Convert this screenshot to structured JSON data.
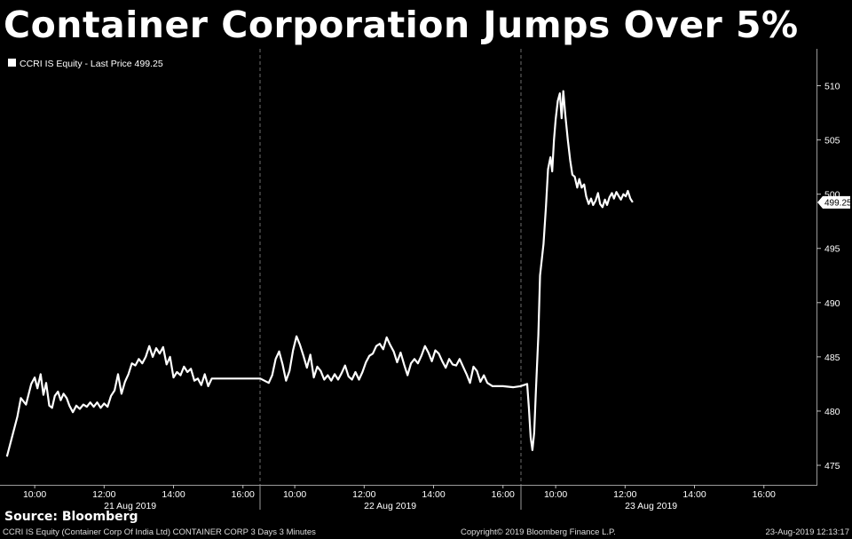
{
  "headline": "Container Corporation Jumps Over 5%",
  "source": "Source: Bloomberg",
  "footer": {
    "left": "CCRI IS Equity (Container Corp Of India Ltd) CONTAINER CORP 3 Days 3 Minutes",
    "center": "Copyright© 2019 Bloomberg Finance L.P.",
    "right": "23-Aug-2019 12:13:17"
  },
  "colors": {
    "background": "#000000",
    "line": "#ffffff",
    "grid": "#6e6e6e",
    "text": "#ffffff"
  },
  "chart_data": {
    "type": "line",
    "title": "",
    "xlabel": "",
    "ylabel": "",
    "legend": {
      "entry": "CCRI IS Equity - Last Price 499.25",
      "placement": "top-left"
    },
    "last_price_label": "499.25",
    "ylim": [
      473.2,
      513.4
    ],
    "yticks": [
      475,
      480,
      485,
      490,
      495,
      500,
      505,
      510
    ],
    "grid": "vertical dashed day separators",
    "days": [
      {
        "label": "21 Aug 2019",
        "ticks": [
          "10:00",
          "12:00",
          "14:00",
          "16:00"
        ]
      },
      {
        "label": "22 Aug 2019",
        "ticks": [
          "10:00",
          "12:00",
          "14:00",
          "16:00"
        ]
      },
      {
        "label": "23 Aug 2019",
        "ticks": [
          "10:00",
          "12:00",
          "14:00",
          "16:00"
        ]
      }
    ],
    "x_session_hours": [
      9.0,
      16.5
    ],
    "series": [
      {
        "values": [
          [
            0,
            9.2,
            475.8
          ],
          [
            0,
            9.33,
            477.4
          ],
          [
            0,
            9.5,
            479.5
          ],
          [
            0,
            9.6,
            481.2
          ],
          [
            0,
            9.75,
            480.6
          ],
          [
            0,
            9.9,
            482.5
          ],
          [
            0,
            10.0,
            483.1
          ],
          [
            0,
            10.08,
            482.1
          ],
          [
            0,
            10.17,
            483.4
          ],
          [
            0,
            10.25,
            481.5
          ],
          [
            0,
            10.33,
            482.6
          ],
          [
            0,
            10.42,
            480.5
          ],
          [
            0,
            10.5,
            480.3
          ],
          [
            0,
            10.58,
            481.4
          ],
          [
            0,
            10.67,
            481.8
          ],
          [
            0,
            10.75,
            481.0
          ],
          [
            0,
            10.83,
            481.6
          ],
          [
            0,
            10.92,
            481.2
          ],
          [
            0,
            11.0,
            480.5
          ],
          [
            0,
            11.1,
            479.9
          ],
          [
            0,
            11.2,
            480.5
          ],
          [
            0,
            11.3,
            480.2
          ],
          [
            0,
            11.4,
            480.6
          ],
          [
            0,
            11.5,
            480.4
          ],
          [
            0,
            11.6,
            480.8
          ],
          [
            0,
            11.7,
            480.4
          ],
          [
            0,
            11.8,
            480.8
          ],
          [
            0,
            11.9,
            480.3
          ],
          [
            0,
            12.0,
            480.7
          ],
          [
            0,
            12.1,
            480.4
          ],
          [
            0,
            12.2,
            481.4
          ],
          [
            0,
            12.3,
            481.9
          ],
          [
            0,
            12.4,
            483.4
          ],
          [
            0,
            12.5,
            481.6
          ],
          [
            0,
            12.6,
            482.7
          ],
          [
            0,
            12.7,
            483.4
          ],
          [
            0,
            12.8,
            484.4
          ],
          [
            0,
            12.9,
            484.2
          ],
          [
            0,
            13.0,
            484.8
          ],
          [
            0,
            13.1,
            484.4
          ],
          [
            0,
            13.2,
            485.0
          ],
          [
            0,
            13.3,
            486.0
          ],
          [
            0,
            13.4,
            485.0
          ],
          [
            0,
            13.5,
            485.8
          ],
          [
            0,
            13.6,
            485.3
          ],
          [
            0,
            13.7,
            485.9
          ],
          [
            0,
            13.8,
            484.3
          ],
          [
            0,
            13.9,
            485.0
          ],
          [
            0,
            14.0,
            483.1
          ],
          [
            0,
            14.1,
            483.6
          ],
          [
            0,
            14.2,
            483.3
          ],
          [
            0,
            14.3,
            484.1
          ],
          [
            0,
            14.4,
            483.6
          ],
          [
            0,
            14.5,
            483.9
          ],
          [
            0,
            14.6,
            482.8
          ],
          [
            0,
            14.7,
            483.0
          ],
          [
            0,
            14.8,
            482.4
          ],
          [
            0,
            14.9,
            483.4
          ],
          [
            0,
            15.0,
            482.3
          ],
          [
            0,
            15.1,
            483.0
          ],
          [
            0,
            15.3,
            483.0
          ],
          [
            0,
            15.6,
            483.0
          ],
          [
            0,
            16.0,
            483.0
          ],
          [
            0,
            16.3,
            483.0
          ],
          [
            0,
            16.5,
            483.0
          ],
          [
            1,
            9.25,
            482.6
          ],
          [
            1,
            9.35,
            483.3
          ],
          [
            1,
            9.45,
            484.8
          ],
          [
            1,
            9.55,
            485.5
          ],
          [
            1,
            9.65,
            484.3
          ],
          [
            1,
            9.75,
            482.8
          ],
          [
            1,
            9.85,
            483.7
          ],
          [
            1,
            9.95,
            485.6
          ],
          [
            1,
            10.05,
            486.9
          ],
          [
            1,
            10.15,
            486.1
          ],
          [
            1,
            10.25,
            485.1
          ],
          [
            1,
            10.35,
            484.0
          ],
          [
            1,
            10.45,
            485.2
          ],
          [
            1,
            10.55,
            483.1
          ],
          [
            1,
            10.65,
            484.1
          ],
          [
            1,
            10.75,
            483.7
          ],
          [
            1,
            10.85,
            482.9
          ],
          [
            1,
            10.95,
            483.3
          ],
          [
            1,
            11.05,
            482.8
          ],
          [
            1,
            11.15,
            483.4
          ],
          [
            1,
            11.25,
            482.9
          ],
          [
            1,
            11.35,
            483.5
          ],
          [
            1,
            11.45,
            484.2
          ],
          [
            1,
            11.55,
            483.2
          ],
          [
            1,
            11.65,
            482.9
          ],
          [
            1,
            11.75,
            483.6
          ],
          [
            1,
            11.85,
            482.9
          ],
          [
            1,
            11.95,
            483.6
          ],
          [
            1,
            12.05,
            484.5
          ],
          [
            1,
            12.15,
            485.1
          ],
          [
            1,
            12.25,
            485.3
          ],
          [
            1,
            12.35,
            486.0
          ],
          [
            1,
            12.45,
            486.2
          ],
          [
            1,
            12.55,
            485.7
          ],
          [
            1,
            12.65,
            486.8
          ],
          [
            1,
            12.75,
            486.1
          ],
          [
            1,
            12.85,
            485.5
          ],
          [
            1,
            12.95,
            484.5
          ],
          [
            1,
            13.05,
            485.4
          ],
          [
            1,
            13.15,
            484.3
          ],
          [
            1,
            13.25,
            483.3
          ],
          [
            1,
            13.35,
            484.4
          ],
          [
            1,
            13.45,
            484.8
          ],
          [
            1,
            13.55,
            484.4
          ],
          [
            1,
            13.65,
            485.1
          ],
          [
            1,
            13.75,
            486.0
          ],
          [
            1,
            13.85,
            485.4
          ],
          [
            1,
            13.95,
            484.6
          ],
          [
            1,
            14.05,
            485.6
          ],
          [
            1,
            14.15,
            485.3
          ],
          [
            1,
            14.25,
            484.6
          ],
          [
            1,
            14.35,
            484.0
          ],
          [
            1,
            14.45,
            484.8
          ],
          [
            1,
            14.55,
            484.3
          ],
          [
            1,
            14.65,
            484.2
          ],
          [
            1,
            14.75,
            484.8
          ],
          [
            1,
            14.85,
            484.1
          ],
          [
            1,
            14.95,
            483.4
          ],
          [
            1,
            15.05,
            482.6
          ],
          [
            1,
            15.15,
            484.1
          ],
          [
            1,
            15.25,
            483.7
          ],
          [
            1,
            15.35,
            482.7
          ],
          [
            1,
            15.45,
            483.3
          ],
          [
            1,
            15.55,
            482.6
          ],
          [
            1,
            15.7,
            482.3
          ],
          [
            1,
            16.0,
            482.3
          ],
          [
            1,
            16.3,
            482.2
          ],
          [
            1,
            16.5,
            482.3
          ],
          [
            2,
            9.18,
            482.5
          ],
          [
            2,
            9.23,
            480.2
          ],
          [
            2,
            9.28,
            477.6
          ],
          [
            2,
            9.33,
            476.4
          ],
          [
            2,
            9.38,
            478.0
          ],
          [
            2,
            9.43,
            481.8
          ],
          [
            2,
            9.5,
            487.0
          ],
          [
            2,
            9.55,
            492.5
          ],
          [
            2,
            9.65,
            495.4
          ],
          [
            2,
            9.72,
            498.9
          ],
          [
            2,
            9.78,
            502.3
          ],
          [
            2,
            9.85,
            503.4
          ],
          [
            2,
            9.9,
            502.1
          ],
          [
            2,
            9.95,
            505.0
          ],
          [
            2,
            10.0,
            506.9
          ],
          [
            2,
            10.06,
            508.6
          ],
          [
            2,
            10.12,
            509.3
          ],
          [
            2,
            10.17,
            507.0
          ],
          [
            2,
            10.22,
            509.5
          ],
          [
            2,
            10.28,
            507.2
          ],
          [
            2,
            10.35,
            505.0
          ],
          [
            2,
            10.42,
            503.1
          ],
          [
            2,
            10.48,
            501.8
          ],
          [
            2,
            10.55,
            501.6
          ],
          [
            2,
            10.62,
            500.6
          ],
          [
            2,
            10.68,
            501.4
          ],
          [
            2,
            10.75,
            500.6
          ],
          [
            2,
            10.82,
            500.9
          ],
          [
            2,
            10.88,
            499.8
          ],
          [
            2,
            10.95,
            499.1
          ],
          [
            2,
            11.02,
            499.6
          ],
          [
            2,
            11.08,
            499.0
          ],
          [
            2,
            11.15,
            499.4
          ],
          [
            2,
            11.22,
            500.1
          ],
          [
            2,
            11.28,
            499.1
          ],
          [
            2,
            11.35,
            498.8
          ],
          [
            2,
            11.42,
            499.5
          ],
          [
            2,
            11.48,
            499.0
          ],
          [
            2,
            11.55,
            499.7
          ],
          [
            2,
            11.62,
            500.1
          ],
          [
            2,
            11.68,
            499.6
          ],
          [
            2,
            11.75,
            500.2
          ],
          [
            2,
            11.82,
            499.8
          ],
          [
            2,
            11.88,
            499.5
          ],
          [
            2,
            11.95,
            500.0
          ],
          [
            2,
            12.02,
            499.8
          ],
          [
            2,
            12.08,
            500.3
          ],
          [
            2,
            12.15,
            499.6
          ],
          [
            2,
            12.22,
            499.25
          ]
        ]
      }
    ]
  }
}
